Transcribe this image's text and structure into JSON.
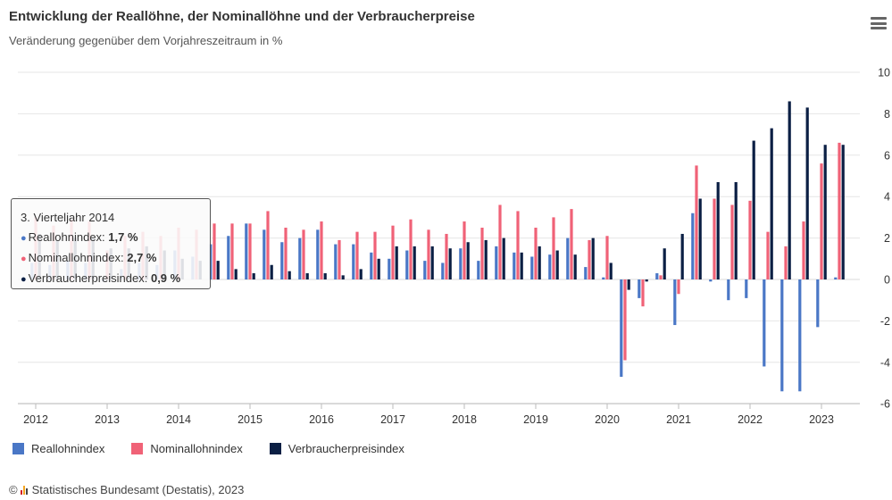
{
  "title": "Entwicklung der Reallöhne, der Nominallöhne und der Verbraucherpreise",
  "subtitle": "Veränderung gegenüber dem Vorjahreszeitraum in %",
  "menu_icon": "hamburger-menu-icon",
  "tooltip": {
    "header": "3. Vierteljahr 2014",
    "rows": [
      {
        "label": "Reallohnindex: ",
        "value": "1,7 %"
      },
      {
        "label": "Nominallohnindex: ",
        "value": "2,7 %"
      },
      {
        "label": "Verbraucherpreisindex: ",
        "value": "0,9 %"
      }
    ]
  },
  "legend": [
    "Reallohnindex",
    "Nominallohnindex",
    "Verbraucherpreisindex"
  ],
  "credit": "Statistisches Bundesamt (Destatis), 2023",
  "chart_data": {
    "type": "bar",
    "x_tick_labels": [
      "2012",
      "2013",
      "2014",
      "2015",
      "2016",
      "2017",
      "2018",
      "2019",
      "2020",
      "2021",
      "2022",
      "2023"
    ],
    "y_ticks": [
      10,
      8,
      6,
      4,
      2,
      0,
      -2,
      -4,
      -6
    ],
    "ylim": [
      -6,
      10
    ],
    "grid": true,
    "legend_position": "bottom-left",
    "colors": [
      "#4a77c6",
      "#f06277",
      "#0b1f44"
    ],
    "categories": [
      "2012-Q1",
      "2012-Q2",
      "2012-Q3",
      "2012-Q4",
      "2013-Q1",
      "2013-Q2",
      "2013-Q3",
      "2013-Q4",
      "2014-Q1",
      "2014-Q2",
      "2014-Q3",
      "2014-Q4",
      "2015-Q1",
      "2015-Q2",
      "2015-Q3",
      "2015-Q4",
      "2016-Q1",
      "2016-Q2",
      "2016-Q3",
      "2016-Q4",
      "2017-Q1",
      "2017-Q2",
      "2017-Q3",
      "2017-Q4",
      "2018-Q1",
      "2018-Q2",
      "2018-Q3",
      "2018-Q4",
      "2019-Q1",
      "2019-Q2",
      "2019-Q3",
      "2019-Q4",
      "2020-Q1",
      "2020-Q2",
      "2020-Q3",
      "2020-Q4",
      "2021-Q1",
      "2021-Q2",
      "2021-Q3",
      "2021-Q4",
      "2022-Q1",
      "2022-Q2",
      "2022-Q3",
      "2022-Q4",
      "2023-Q1",
      "2023-Q2"
    ],
    "series": [
      {
        "name": "Reallohnindex",
        "values": [
          0.8,
          0.7,
          0.9,
          0.8,
          -0.1,
          0.5,
          0.8,
          0.7,
          1.4,
          1.1,
          1.7,
          2.1,
          2.7,
          2.4,
          1.8,
          2.0,
          2.4,
          1.7,
          1.7,
          1.3,
          1.0,
          1.4,
          0.9,
          0.8,
          1.5,
          0.9,
          1.6,
          1.3,
          1.1,
          1.2,
          2.0,
          0.6,
          0.1,
          -4.7,
          -0.9,
          0.3,
          -2.2,
          3.2,
          -0.1,
          -1.0,
          -0.9,
          -4.2,
          -5.4,
          -5.4,
          -2.3,
          0.1
        ]
      },
      {
        "name": "Nominallohnindex",
        "values": [
          3.0,
          2.6,
          2.9,
          2.8,
          1.4,
          2.1,
          2.3,
          2.1,
          2.5,
          2.4,
          2.7,
          2.7,
          2.7,
          3.3,
          2.5,
          2.4,
          2.8,
          1.9,
          2.3,
          2.3,
          2.6,
          2.9,
          2.4,
          2.2,
          2.8,
          2.5,
          3.6,
          3.3,
          2.5,
          3.0,
          3.4,
          1.9,
          2.1,
          -3.9,
          -1.3,
          0.2,
          -0.7,
          5.5,
          3.9,
          3.6,
          3.8,
          2.3,
          1.6,
          2.8,
          5.6,
          6.6
        ]
      },
      {
        "name": "Verbraucherpreisindex",
        "values": [
          2.2,
          1.9,
          2.0,
          2.0,
          1.5,
          1.5,
          1.6,
          1.4,
          1.0,
          0.9,
          0.9,
          0.5,
          0.3,
          0.7,
          0.4,
          0.3,
          0.3,
          0.2,
          0.5,
          1.0,
          1.6,
          1.6,
          1.6,
          1.5,
          1.8,
          1.9,
          2.0,
          1.3,
          1.6,
          1.4,
          1.2,
          2.0,
          0.8,
          -0.5,
          -0.1,
          1.5,
          2.2,
          3.9,
          4.7,
          4.7,
          6.7,
          7.3,
          8.6,
          8.3,
          6.5,
          6.5
        ]
      }
    ]
  }
}
